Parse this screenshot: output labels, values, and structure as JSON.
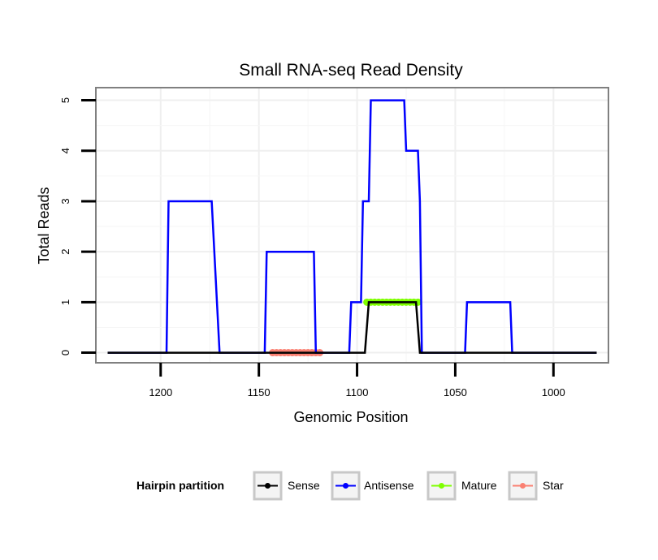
{
  "chart_data": {
    "type": "line",
    "title": "Small RNA-seq Read Density",
    "xlabel": "Genomic Position",
    "ylabel": "Total Reads",
    "xlim": [
      1233,
      972
    ],
    "ylim": [
      -0.2,
      5.25
    ],
    "x_reversed": true,
    "x_ticks": [
      1200,
      1150,
      1100,
      1050,
      1000
    ],
    "x_tick_labels": [
      "1200",
      "1150",
      "1100",
      "1050",
      "1000"
    ],
    "y_ticks": [
      0,
      1,
      2,
      3,
      4,
      5
    ],
    "y_tick_labels": [
      "0",
      "1",
      "2",
      "3",
      "4",
      "5"
    ],
    "grid": true,
    "legend": {
      "title": "Hairpin partition",
      "position": "bottom"
    },
    "series": [
      {
        "name": "Sense",
        "color": "#000000",
        "style": "line",
        "x": [
          1227,
          1096,
          1094,
          1070,
          1068,
          978
        ],
        "y": [
          0,
          0,
          1,
          1,
          0,
          0
        ]
      },
      {
        "name": "Antisense",
        "color": "#0000ff",
        "style": "line",
        "x": [
          1227,
          1197,
          1196,
          1174,
          1170,
          1147,
          1146,
          1122,
          1121,
          1104,
          1103,
          1098,
          1097,
          1094,
          1093,
          1091,
          1088,
          1076,
          1075,
          1069,
          1068,
          1067,
          1045,
          1044,
          1022,
          1021,
          978
        ],
        "y": [
          0,
          0,
          3,
          3,
          0,
          0,
          2,
          2,
          0,
          0,
          1,
          1,
          3,
          3,
          5,
          5,
          5,
          5,
          4,
          4,
          3,
          0,
          0,
          1,
          1,
          0,
          0
        ]
      },
      {
        "name": "Mature",
        "color": "#7fff00",
        "style": "points",
        "x": [
          1095,
          1093,
          1091,
          1089,
          1087,
          1085,
          1083,
          1081,
          1079,
          1077,
          1075,
          1073,
          1071,
          1069
        ],
        "y": [
          1,
          1,
          1,
          1,
          1,
          1,
          1,
          1,
          1,
          1,
          1,
          1,
          1,
          1
        ]
      },
      {
        "name": "Star",
        "color": "#fa8072",
        "style": "points",
        "x": [
          1143,
          1141,
          1139,
          1137,
          1135,
          1133,
          1131,
          1129,
          1127,
          1125,
          1123,
          1121,
          1119
        ],
        "y": [
          0,
          0,
          0,
          0,
          0,
          0,
          0,
          0,
          0,
          0,
          0,
          0,
          0
        ]
      }
    ]
  }
}
